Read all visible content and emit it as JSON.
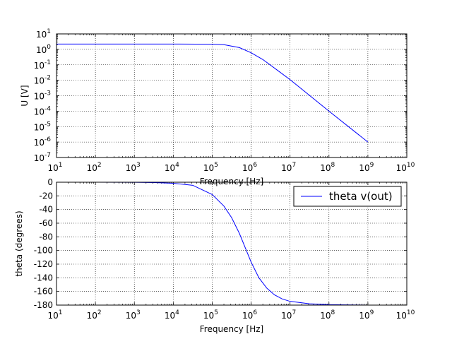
{
  "chart_data": [
    {
      "type": "line",
      "xscale": "log",
      "yscale": "log",
      "xlabel": "Frequency [Hz]",
      "ylabel": "U [V]",
      "xlim": [
        10,
        10000000000
      ],
      "ylim": [
        1e-07,
        10
      ],
      "x_ticks": [
        {
          "base": "10",
          "exp": "1"
        },
        {
          "base": "10",
          "exp": "2"
        },
        {
          "base": "10",
          "exp": "3"
        },
        {
          "base": "10",
          "exp": "4"
        },
        {
          "base": "10",
          "exp": "5"
        },
        {
          "base": "10",
          "exp": "6"
        },
        {
          "base": "10",
          "exp": "7"
        },
        {
          "base": "10",
          "exp": "8"
        },
        {
          "base": "10",
          "exp": "9"
        },
        {
          "base": "10",
          "exp": "10"
        }
      ],
      "y_ticks": [
        {
          "base": "10",
          "exp": "1"
        },
        {
          "base": "10",
          "exp": "0"
        },
        {
          "base": "10",
          "exp": "-1"
        },
        {
          "base": "10",
          "exp": "-2"
        },
        {
          "base": "10",
          "exp": "-3"
        },
        {
          "base": "10",
          "exp": "-4"
        },
        {
          "base": "10",
          "exp": "-5"
        },
        {
          "base": "10",
          "exp": "-6"
        },
        {
          "base": "10",
          "exp": "-7"
        }
      ],
      "grid": true,
      "series": [
        {
          "color": "#0000ff",
          "x": [
            10,
            100,
            1000,
            10000,
            100000,
            200000,
            500000,
            1000000,
            2000000,
            5000000,
            10000000,
            100000000,
            1000000000
          ],
          "y": [
            2.2,
            2.2,
            2.2,
            2.2,
            2.15,
            2.0,
            1.3,
            0.6,
            0.22,
            0.04,
            0.011,
            0.0001,
            1e-06
          ]
        }
      ]
    },
    {
      "type": "line",
      "xscale": "log",
      "yscale": "linear",
      "xlabel": "Frequency [Hz]",
      "ylabel": "theta (degrees)",
      "xlim": [
        10,
        10000000000
      ],
      "ylim": [
        -180,
        0
      ],
      "x_ticks": [
        {
          "base": "10",
          "exp": "1"
        },
        {
          "base": "10",
          "exp": "2"
        },
        {
          "base": "10",
          "exp": "3"
        },
        {
          "base": "10",
          "exp": "4"
        },
        {
          "base": "10",
          "exp": "5"
        },
        {
          "base": "10",
          "exp": "6"
        },
        {
          "base": "10",
          "exp": "7"
        },
        {
          "base": "10",
          "exp": "8"
        },
        {
          "base": "10",
          "exp": "9"
        },
        {
          "base": "10",
          "exp": "10"
        }
      ],
      "y_ticks": [
        "0",
        "-20",
        "-40",
        "-60",
        "-80",
        "-100",
        "-120",
        "-140",
        "-160",
        "-180"
      ],
      "y_tick_values": [
        0,
        -20,
        -40,
        -60,
        -80,
        -100,
        -120,
        -140,
        -160,
        -180
      ],
      "grid": true,
      "legend_position": "top-right",
      "series": [
        {
          "name": "theta v(out)",
          "color": "#0000ff",
          "x": [
            10,
            100,
            1000,
            3162,
            10000,
            31623,
            100000,
            200000,
            316228,
            500000,
            794328,
            1000000,
            1584893,
            2511886,
            3981072,
            6309573,
            10000000,
            31622777,
            100000000,
            1000000000
          ],
          "y": [
            0,
            0,
            -0.1,
            -0.5,
            -1.5,
            -4.5,
            -18,
            -35,
            -52,
            -75,
            -103,
            -117,
            -140,
            -155,
            -165,
            -171,
            -174.5,
            -178,
            -179.3,
            -180
          ]
        }
      ]
    }
  ]
}
